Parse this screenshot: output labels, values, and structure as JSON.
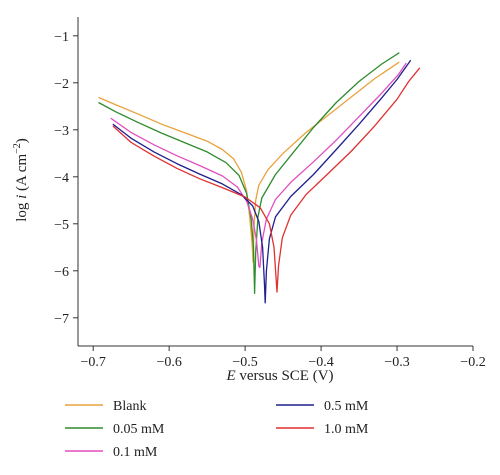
{
  "chart_data": {
    "type": "line",
    "xlabel_italic": "E",
    "xlabel_rest": " versus SCE (V)",
    "ylabel_prefix": "log ",
    "ylabel_italic": "i",
    "ylabel_unit": " (A cm",
    "ylabel_sup": "−2",
    "ylabel_close": ")",
    "xlim": [
      -0.72,
      -0.2
    ],
    "ylim": [
      -7.6,
      -0.6
    ],
    "x_ticks": [
      -0.7,
      -0.6,
      -0.5,
      -0.4,
      -0.3,
      -0.2
    ],
    "x_tick_labels": [
      "−0.7",
      "−0.6",
      "−0.5",
      "−0.4",
      "−0.3",
      "−0.2"
    ],
    "y_ticks": [
      -1,
      -2,
      -3,
      -4,
      -5,
      -6,
      -7
    ],
    "y_tick_labels": [
      "−1",
      "−2",
      "−3",
      "−4",
      "−5",
      "−6",
      "−7"
    ],
    "legend_position": "bottom",
    "series": [
      {
        "name": "Blank",
        "color": "#E8A23C",
        "points": [
          [
            -0.693,
            -2.31
          ],
          [
            -0.67,
            -2.47
          ],
          [
            -0.64,
            -2.67
          ],
          [
            -0.61,
            -2.88
          ],
          [
            -0.58,
            -3.06
          ],
          [
            -0.55,
            -3.24
          ],
          [
            -0.53,
            -3.42
          ],
          [
            -0.515,
            -3.62
          ],
          [
            -0.505,
            -3.9
          ],
          [
            -0.498,
            -4.3
          ],
          [
            -0.494,
            -4.85
          ],
          [
            -0.491,
            -5.4
          ],
          [
            -0.4895,
            -5.82
          ],
          [
            -0.4885,
            -5.1
          ],
          [
            -0.486,
            -4.5
          ],
          [
            -0.482,
            -4.18
          ],
          [
            -0.47,
            -3.85
          ],
          [
            -0.45,
            -3.5
          ],
          [
            -0.42,
            -3.06
          ],
          [
            -0.39,
            -2.68
          ],
          [
            -0.36,
            -2.3
          ],
          [
            -0.33,
            -1.92
          ],
          [
            -0.297,
            -1.56
          ]
        ]
      },
      {
        "name": "0.05 mM",
        "color": "#2E8B2E",
        "points": [
          [
            -0.693,
            -2.42
          ],
          [
            -0.67,
            -2.62
          ],
          [
            -0.64,
            -2.85
          ],
          [
            -0.61,
            -3.07
          ],
          [
            -0.58,
            -3.27
          ],
          [
            -0.55,
            -3.47
          ],
          [
            -0.525,
            -3.7
          ],
          [
            -0.508,
            -3.97
          ],
          [
            -0.498,
            -4.35
          ],
          [
            -0.492,
            -4.9
          ],
          [
            -0.489,
            -5.5
          ],
          [
            -0.4875,
            -6.48
          ],
          [
            -0.486,
            -5.6
          ],
          [
            -0.483,
            -4.85
          ],
          [
            -0.478,
            -4.45
          ],
          [
            -0.46,
            -3.95
          ],
          [
            -0.44,
            -3.55
          ],
          [
            -0.41,
            -2.95
          ],
          [
            -0.38,
            -2.42
          ],
          [
            -0.35,
            -1.97
          ],
          [
            -0.32,
            -1.6
          ],
          [
            -0.297,
            -1.36
          ]
        ]
      },
      {
        "name": "0.1 mM",
        "color": "#E24FC0",
        "points": [
          [
            -0.677,
            -2.75
          ],
          [
            -0.65,
            -3.06
          ],
          [
            -0.62,
            -3.32
          ],
          [
            -0.59,
            -3.55
          ],
          [
            -0.56,
            -3.76
          ],
          [
            -0.53,
            -3.98
          ],
          [
            -0.51,
            -4.22
          ],
          [
            -0.498,
            -4.52
          ],
          [
            -0.49,
            -4.9
          ],
          [
            -0.485,
            -5.35
          ],
          [
            -0.482,
            -5.9
          ],
          [
            -0.4805,
            -5.93
          ],
          [
            -0.478,
            -5.4
          ],
          [
            -0.472,
            -4.9
          ],
          [
            -0.46,
            -4.48
          ],
          [
            -0.44,
            -4.12
          ],
          [
            -0.41,
            -3.68
          ],
          [
            -0.38,
            -3.22
          ],
          [
            -0.35,
            -2.72
          ],
          [
            -0.32,
            -2.22
          ],
          [
            -0.298,
            -1.82
          ],
          [
            -0.288,
            -1.58
          ]
        ]
      },
      {
        "name": "0.5 mM",
        "color": "#1F1F8F",
        "points": [
          [
            -0.674,
            -2.88
          ],
          [
            -0.65,
            -3.18
          ],
          [
            -0.62,
            -3.47
          ],
          [
            -0.59,
            -3.72
          ],
          [
            -0.56,
            -3.94
          ],
          [
            -0.53,
            -4.15
          ],
          [
            -0.505,
            -4.38
          ],
          [
            -0.49,
            -4.62
          ],
          [
            -0.482,
            -4.95
          ],
          [
            -0.477,
            -5.5
          ],
          [
            -0.4745,
            -6.3
          ],
          [
            -0.4735,
            -6.68
          ],
          [
            -0.472,
            -6.0
          ],
          [
            -0.468,
            -5.32
          ],
          [
            -0.46,
            -4.85
          ],
          [
            -0.44,
            -4.42
          ],
          [
            -0.41,
            -3.95
          ],
          [
            -0.38,
            -3.42
          ],
          [
            -0.35,
            -2.88
          ],
          [
            -0.32,
            -2.32
          ],
          [
            -0.3,
            -1.93
          ],
          [
            -0.282,
            -1.52
          ]
        ]
      },
      {
        "name": "1.0 mM",
        "color": "#E03030",
        "points": [
          [
            -0.674,
            -2.92
          ],
          [
            -0.65,
            -3.27
          ],
          [
            -0.62,
            -3.56
          ],
          [
            -0.59,
            -3.82
          ],
          [
            -0.56,
            -4.04
          ],
          [
            -0.53,
            -4.23
          ],
          [
            -0.5,
            -4.43
          ],
          [
            -0.48,
            -4.66
          ],
          [
            -0.468,
            -5.0
          ],
          [
            -0.462,
            -5.5
          ],
          [
            -0.4595,
            -6.1
          ],
          [
            -0.458,
            -6.45
          ],
          [
            -0.456,
            -5.9
          ],
          [
            -0.451,
            -5.3
          ],
          [
            -0.44,
            -4.82
          ],
          [
            -0.42,
            -4.38
          ],
          [
            -0.39,
            -3.92
          ],
          [
            -0.36,
            -3.45
          ],
          [
            -0.33,
            -2.93
          ],
          [
            -0.3,
            -2.35
          ],
          [
            -0.285,
            -1.98
          ],
          [
            -0.27,
            -1.68
          ]
        ]
      }
    ]
  }
}
